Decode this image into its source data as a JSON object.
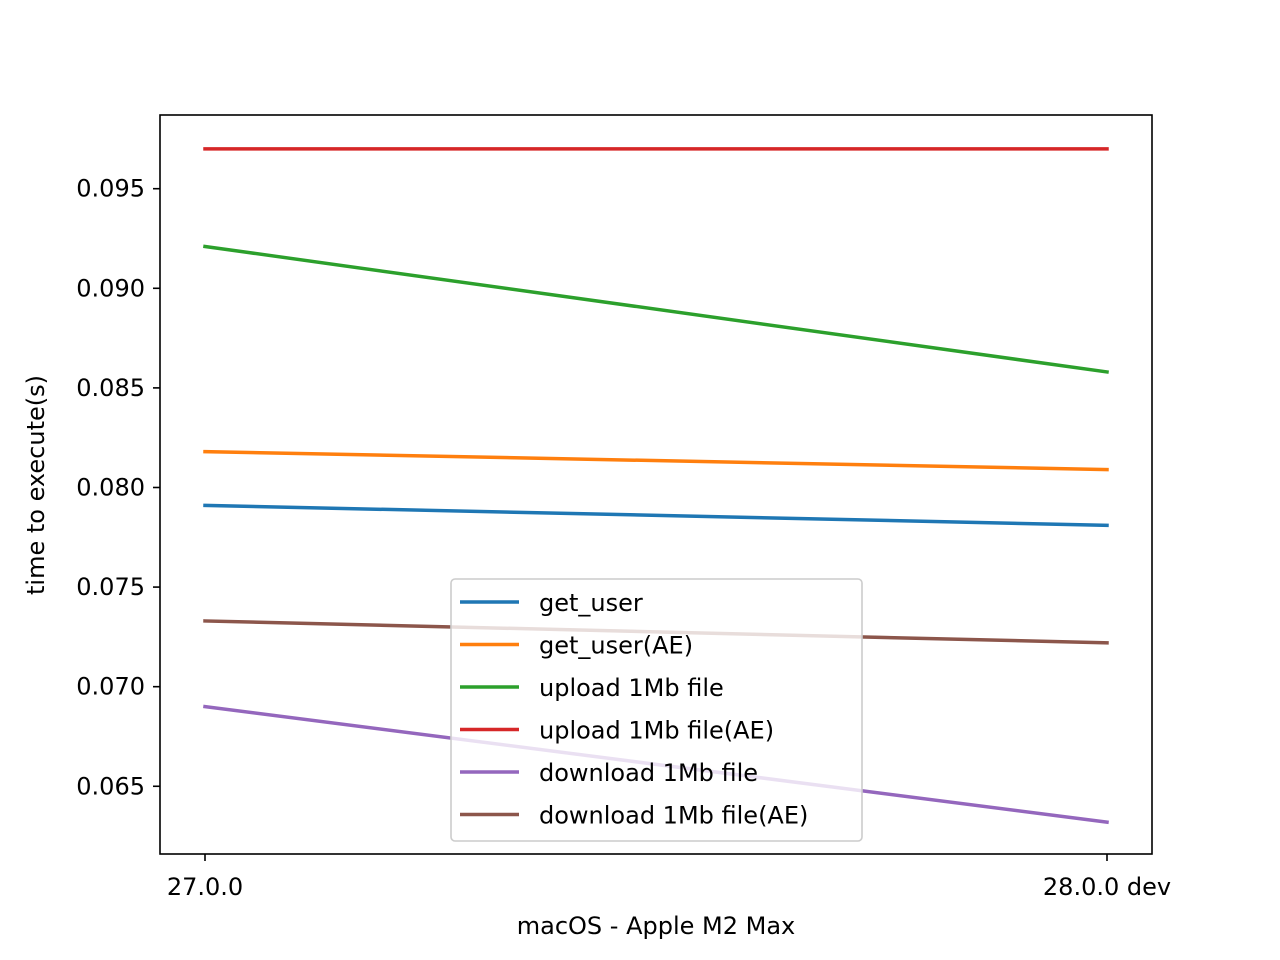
{
  "chart_data": {
    "type": "line",
    "title": "",
    "xlabel": "macOS - Apple M2 Max",
    "ylabel": "time to execute(s)",
    "categories": [
      "27.0.0",
      "28.0.0 dev"
    ],
    "ylim": [
      0.0616,
      0.0987
    ],
    "yticks": [
      0.065,
      0.07,
      0.075,
      0.08,
      0.085,
      0.09,
      0.095
    ],
    "ytick_labels": [
      "0.065",
      "0.070",
      "0.075",
      "0.080",
      "0.085",
      "0.090",
      "0.095"
    ],
    "grid": false,
    "legend_position": "lower center",
    "series": [
      {
        "name": "get_user",
        "color": "#1f77b4",
        "values": [
          0.0791,
          0.0781
        ]
      },
      {
        "name": "get_user(AE)",
        "color": "#ff7f0e",
        "values": [
          0.0818,
          0.0809
        ]
      },
      {
        "name": "upload 1Mb file",
        "color": "#2ca02c",
        "values": [
          0.0921,
          0.0858
        ]
      },
      {
        "name": "upload 1Mb file(AE)",
        "color": "#d62728",
        "values": [
          0.097,
          0.097
        ]
      },
      {
        "name": "download 1Mb file",
        "color": "#9467bd",
        "values": [
          0.069,
          0.0632
        ]
      },
      {
        "name": "download 1Mb file(AE)",
        "color": "#8c564b",
        "values": [
          0.0733,
          0.0722
        ]
      }
    ]
  }
}
